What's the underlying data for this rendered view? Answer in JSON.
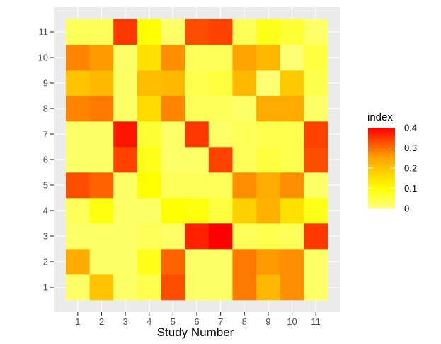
{
  "chart_data": {
    "type": "heatmap",
    "xlabel": "Study Number",
    "ylabel": "",
    "x_categories": [
      "1",
      "2",
      "3",
      "4",
      "5",
      "6",
      "7",
      "8",
      "9",
      "10",
      "11"
    ],
    "y_categories": [
      "1",
      "2",
      "3",
      "4",
      "5",
      "6",
      "7",
      "8",
      "9",
      "10",
      "11"
    ],
    "values": [
      [
        0.02,
        0.2,
        0.02,
        0.04,
        0.33,
        0.02,
        0.02,
        0.29,
        0.22,
        0.27,
        0.02
      ],
      [
        0.24,
        0.02,
        0.02,
        0.08,
        0.31,
        0.02,
        0.02,
        0.29,
        0.26,
        0.27,
        0.02
      ],
      [
        0.02,
        0.02,
        0.02,
        0.03,
        0.02,
        0.37,
        0.4,
        0.03,
        0.04,
        0.03,
        0.35
      ],
      [
        0.03,
        0.09,
        0.02,
        0.02,
        0.1,
        0.09,
        0.05,
        0.18,
        0.23,
        0.15,
        0.08
      ],
      [
        0.33,
        0.31,
        0.02,
        0.1,
        0.03,
        0.03,
        0.03,
        0.27,
        0.24,
        0.27,
        0.02
      ],
      [
        0.02,
        0.02,
        0.34,
        0.08,
        0.02,
        0.02,
        0.34,
        0.03,
        0.05,
        0.04,
        0.33
      ],
      [
        0.02,
        0.02,
        0.38,
        0.06,
        0.02,
        0.35,
        0.02,
        0.03,
        0.04,
        0.04,
        0.34
      ],
      [
        0.28,
        0.29,
        0.02,
        0.16,
        0.28,
        0.03,
        0.03,
        0.02,
        0.24,
        0.24,
        0.02
      ],
      [
        0.2,
        0.22,
        0.02,
        0.21,
        0.22,
        0.04,
        0.05,
        0.22,
        0.01,
        0.19,
        0.04
      ],
      [
        0.28,
        0.26,
        0.02,
        0.15,
        0.27,
        0.03,
        0.03,
        0.25,
        0.22,
        0.01,
        0.05
      ],
      [
        0.03,
        0.03,
        0.35,
        0.1,
        0.02,
        0.33,
        0.34,
        0.03,
        0.08,
        0.06,
        0.02
      ]
    ],
    "legend": {
      "title": "index",
      "ticks": [
        0,
        0.1,
        0.2,
        0.3,
        0.4
      ],
      "tick_labels": [
        "0",
        "0.1",
        "0.2",
        "0.3",
        "0.4"
      ],
      "placement": "right"
    },
    "color_scale": {
      "low": "#ffff80",
      "mid_low": "#ffff00",
      "mid": "#ffa500",
      "high": "#ff0000"
    },
    "value_range": [
      0,
      0.4
    ],
    "panel_background": "#ebebeb",
    "grid": true
  }
}
